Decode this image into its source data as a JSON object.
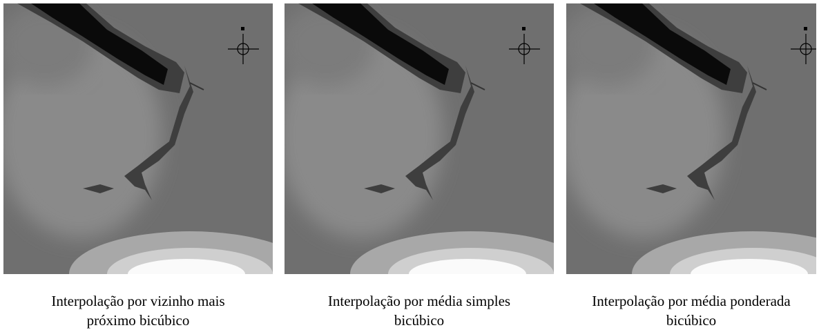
{
  "panels": [
    {
      "caption": [
        "Interpolação por vizinho mais",
        "próximo bicúbico"
      ]
    },
    {
      "caption": [
        "Interpolação por média simples",
        "bicúbico"
      ]
    },
    {
      "caption": [
        "Interpolação por média ponderada",
        "bicúbico"
      ]
    }
  ]
}
